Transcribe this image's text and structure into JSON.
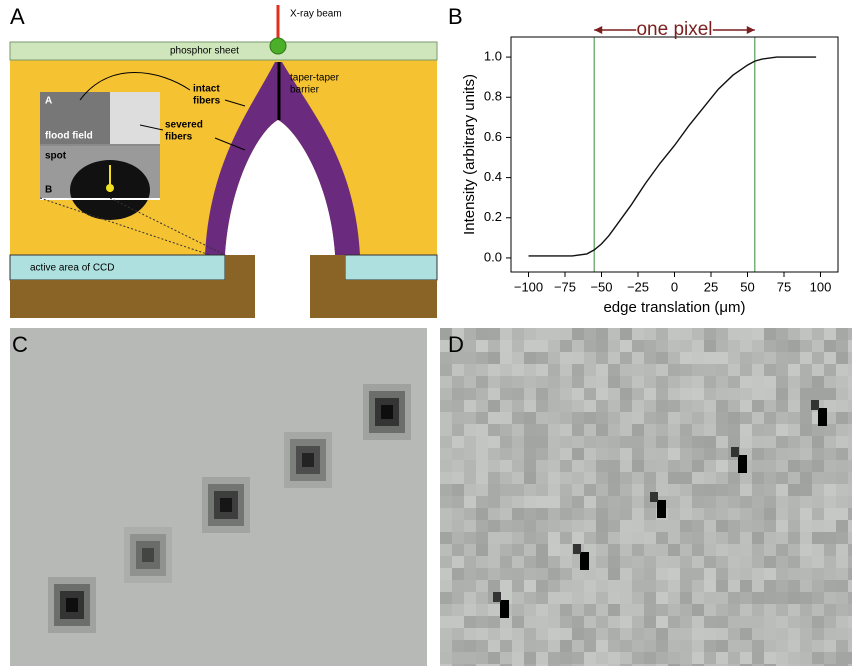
{
  "panel_labels": [
    "A",
    "B",
    "C",
    "D"
  ],
  "diagram": {
    "beam": "X-ray beam",
    "phosphor": "phosphor sheet",
    "intact": [
      "intact",
      "fibers"
    ],
    "barrier": [
      "taper-taper",
      "barrier"
    ],
    "severed": [
      "severed",
      "fibers"
    ],
    "inset_a": "A",
    "flood": "flood field",
    "spot": "spot",
    "inset_b": "B",
    "ccd": "active area of CCD"
  },
  "chart_data": {
    "type": "line",
    "annotation": "one pixel",
    "xlabel": "edge translation (μm)",
    "ylabel": "Intensity (arbitrary units)",
    "x": [
      -100,
      -90,
      -80,
      -70,
      -60,
      -55,
      -50,
      -45,
      -40,
      -30,
      -20,
      -10,
      0,
      10,
      20,
      30,
      40,
      50,
      55,
      60,
      70,
      80,
      97
    ],
    "values": [
      0.01,
      0.01,
      0.01,
      0.01,
      0.02,
      0.04,
      0.07,
      0.11,
      0.16,
      0.26,
      0.37,
      0.47,
      0.56,
      0.66,
      0.75,
      0.84,
      0.91,
      0.96,
      0.98,
      0.99,
      1.0,
      1.0,
      1.0
    ],
    "color": "#111111",
    "vlines": [
      -55,
      55
    ],
    "vline_color": "#5aa05a",
    "annotation_color": "#7a1f1f",
    "xlim": [
      -112,
      112
    ],
    "ylim": [
      -0.07,
      1.1
    ],
    "xticks": [
      {
        "value": -100,
        "label": "−100"
      },
      {
        "value": -75,
        "label": "−75"
      },
      {
        "value": -50,
        "label": "−50"
      },
      {
        "value": -25,
        "label": "−25"
      },
      0,
      25,
      50,
      75,
      100
    ],
    "yticks": [
      {
        "value": 0,
        "label": "0.0"
      },
      0.2,
      0.4,
      0.6,
      0.8,
      {
        "value": 1,
        "label": "1.0"
      }
    ]
  }
}
